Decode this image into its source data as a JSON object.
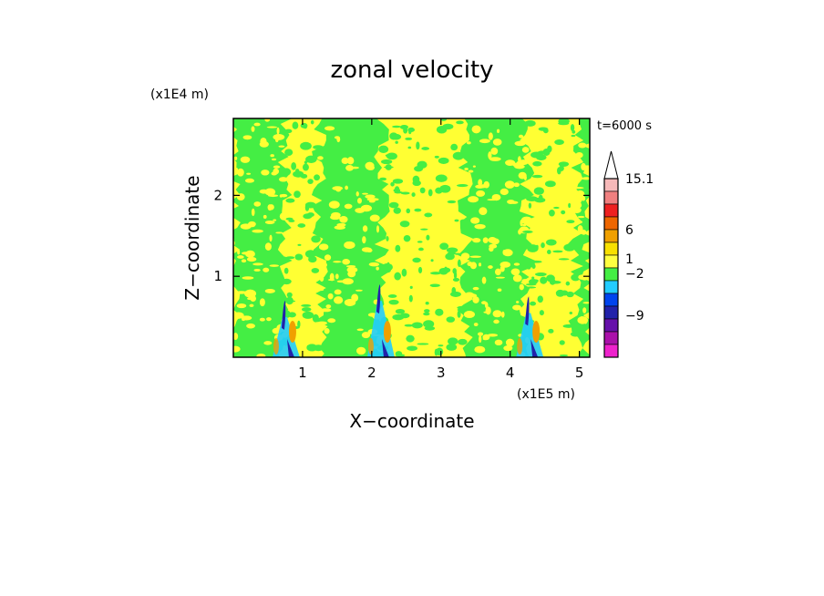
{
  "chart_data": {
    "type": "heatmap",
    "title": "zonal velocity",
    "xlabel": "X−coordinate",
    "ylabel": "Z−coordinate",
    "x_unit": "(x1E5 m)",
    "y_unit": "(x1E4 m)",
    "time_label": "t=6000 s",
    "xlim": [
      0,
      5.15
    ],
    "ylim": [
      0,
      2.95
    ],
    "x_ticks": [
      {
        "value": 1,
        "label": "1"
      },
      {
        "value": 2,
        "label": "2"
      },
      {
        "value": 3,
        "label": "3"
      },
      {
        "value": 4,
        "label": "4"
      },
      {
        "value": 5,
        "label": "5"
      }
    ],
    "y_ticks": [
      {
        "value": 1,
        "label": "1"
      },
      {
        "value": 2,
        "label": "2"
      }
    ],
    "colorbar": {
      "levels": [
        {
          "label": "",
          "color": "#ffffff"
        },
        {
          "label": "15.1",
          "color": "#f7b9b9"
        },
        {
          "label": "",
          "color": "#f08080"
        },
        {
          "label": "",
          "color": "#ee2020"
        },
        {
          "label": "6",
          "color": "#ee6600"
        },
        {
          "label": "",
          "color": "#f0a000"
        },
        {
          "label": "",
          "color": "#f8e000"
        },
        {
          "label": "1",
          "color": "#ffff40"
        },
        {
          "label": "",
          "color": "#44ee44"
        },
        {
          "label": "",
          "color": "#22ccff"
        },
        {
          "label": "−2",
          "color": "#0044ee"
        },
        {
          "label": "",
          "color": "#2222aa"
        },
        {
          "label": "",
          "color": "#6611aa"
        },
        {
          "label": "−9",
          "color": "#aa11aa"
        },
        {
          "label": "",
          "color": "#ee22cc"
        }
      ]
    },
    "field": {
      "background_color": "#ffff33",
      "alt_color": "#44ee44",
      "bands": [
        {
          "name": "green band 1",
          "x_range": [
            0.0,
            0.75
          ],
          "value": "0 to 1"
        },
        {
          "name": "green band 2",
          "x_range": [
            1.25,
            2.15
          ],
          "value": "0 to 1"
        },
        {
          "name": "green band 3",
          "x_range": [
            3.35,
            4.25
          ],
          "value": "0 to 1"
        },
        {
          "name": "green band 4",
          "x_range": [
            4.95,
            5.15
          ],
          "value": "0 to 1"
        }
      ],
      "wave_features": [
        {
          "x": 0.75,
          "z_top": 0.7,
          "colors": [
            "#2222aa",
            "#22ccff",
            "#f0a000"
          ]
        },
        {
          "x": 2.12,
          "z_top": 0.9,
          "colors": [
            "#2222aa",
            "#22ccff",
            "#f0a000"
          ]
        },
        {
          "x": 4.27,
          "z_top": 0.75,
          "colors": [
            "#2222aa",
            "#22ccff",
            "#f0a000"
          ]
        }
      ]
    }
  }
}
